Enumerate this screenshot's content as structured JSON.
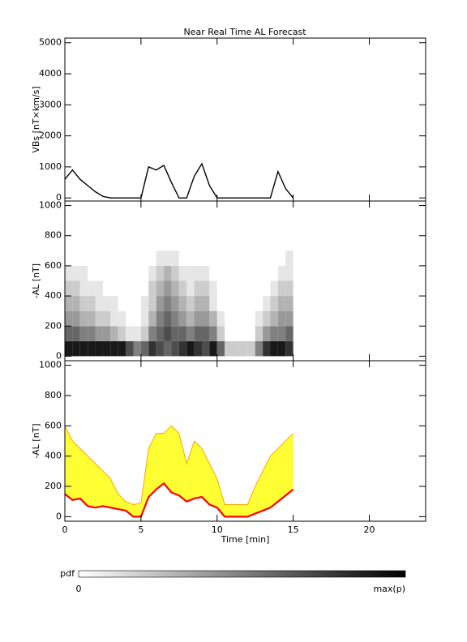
{
  "chart_data": [
    {
      "type": "line",
      "title": "Near Real Time AL Forecast",
      "ylabel": "VBs [nT×km/s]",
      "color": "#000000",
      "x": [
        0,
        0.5,
        1,
        1.5,
        2,
        2.5,
        3,
        3.5,
        4,
        4.5,
        5,
        5.5,
        6,
        6.5,
        7,
        7.5,
        8,
        8.5,
        9,
        9.5,
        10,
        10.5,
        11,
        11.5,
        12,
        12.5,
        13,
        13.5,
        14,
        14.5,
        15
      ],
      "values": [
        600,
        900,
        600,
        400,
        200,
        50,
        0,
        0,
        0,
        0,
        0,
        1000,
        900,
        1050,
        500,
        0,
        0,
        700,
        1100,
        400,
        0,
        0,
        0,
        0,
        0,
        0,
        0,
        0,
        850,
        300,
        0
      ],
      "xlim": [
        0,
        23.7
      ],
      "xticks": [
        0,
        5,
        10,
        15,
        20
      ],
      "ylim": [
        -100,
        5150
      ],
      "yticks": [
        0,
        1000,
        2000,
        3000,
        4000,
        5000
      ]
    },
    {
      "type": "heatmap",
      "ylabel": "-AL [nT]",
      "xbins": [
        0,
        0.5,
        1,
        1.5,
        2,
        2.5,
        3,
        3.5,
        4,
        4.5,
        5,
        5.5,
        6,
        6.5,
        7,
        7.5,
        8,
        8.5,
        9,
        9.5,
        10,
        10.5,
        11,
        11.5,
        12,
        12.5,
        13,
        13.5,
        14,
        14.5,
        15
      ],
      "ybins": [
        0,
        100,
        200,
        300,
        400,
        500,
        600,
        700
      ],
      "z": [
        [
          0.9,
          0.6,
          0.4,
          0.3,
          0.2,
          0.1,
          0
        ],
        [
          0.9,
          0.6,
          0.4,
          0.3,
          0.2,
          0.1,
          0
        ],
        [
          0.9,
          0.5,
          0.3,
          0.2,
          0.1,
          0.1,
          0
        ],
        [
          0.9,
          0.5,
          0.3,
          0.2,
          0.1,
          0,
          0
        ],
        [
          0.9,
          0.4,
          0.2,
          0.1,
          0.1,
          0,
          0
        ],
        [
          0.9,
          0.4,
          0.2,
          0.1,
          0,
          0,
          0
        ],
        [
          0.9,
          0.3,
          0.1,
          0.1,
          0,
          0,
          0
        ],
        [
          0.9,
          0.2,
          0.1,
          0,
          0,
          0,
          0
        ],
        [
          0.7,
          0.1,
          0,
          0,
          0,
          0,
          0
        ],
        [
          0.5,
          0.1,
          0,
          0,
          0,
          0,
          0
        ],
        [
          0.6,
          0.2,
          0.1,
          0.1,
          0,
          0,
          0
        ],
        [
          0.8,
          0.5,
          0.3,
          0.2,
          0.2,
          0.1,
          0
        ],
        [
          0.7,
          0.6,
          0.5,
          0.4,
          0.3,
          0.2,
          0.1
        ],
        [
          0.6,
          0.7,
          0.6,
          0.5,
          0.4,
          0.3,
          0.1
        ],
        [
          0.7,
          0.6,
          0.5,
          0.4,
          0.3,
          0.2,
          0.1
        ],
        [
          0.8,
          0.6,
          0.4,
          0.3,
          0.2,
          0.1,
          0
        ],
        [
          0.9,
          0.5,
          0.3,
          0.2,
          0.1,
          0.1,
          0
        ],
        [
          0.8,
          0.6,
          0.4,
          0.3,
          0.2,
          0.1,
          0
        ],
        [
          0.7,
          0.6,
          0.4,
          0.3,
          0.2,
          0.1,
          0
        ],
        [
          0.9,
          0.5,
          0.3,
          0.1,
          0.1,
          0,
          0
        ],
        [
          0.6,
          0.2,
          0.1,
          0,
          0,
          0,
          0
        ],
        [
          0.2,
          0,
          0,
          0,
          0,
          0,
          0
        ],
        [
          0.2,
          0,
          0,
          0,
          0,
          0,
          0
        ],
        [
          0.2,
          0,
          0,
          0,
          0,
          0,
          0
        ],
        [
          0.2,
          0,
          0,
          0,
          0,
          0,
          0
        ],
        [
          0.5,
          0.2,
          0.1,
          0,
          0,
          0,
          0
        ],
        [
          0.8,
          0.4,
          0.2,
          0.1,
          0,
          0,
          0
        ],
        [
          0.9,
          0.5,
          0.3,
          0.2,
          0.1,
          0,
          0
        ],
        [
          0.9,
          0.5,
          0.4,
          0.3,
          0.2,
          0.1,
          0
        ],
        [
          0.8,
          0.6,
          0.4,
          0.3,
          0.2,
          0.1,
          0.1
        ]
      ],
      "xlim": [
        0,
        23.7
      ],
      "xticks": [
        0,
        5,
        10,
        15,
        20
      ],
      "ylim": [
        -30,
        1030
      ],
      "yticks": [
        0,
        200,
        400,
        600,
        800,
        1000
      ]
    },
    {
      "type": "band",
      "ylabel": "-AL [nT]",
      "xlabel": "Time [min]",
      "color": "#ff0000",
      "band_color": "#ffff33",
      "band_edge_color": "#ffa500",
      "x": [
        0,
        0.5,
        1,
        1.5,
        2,
        2.5,
        3,
        3.5,
        4,
        4.5,
        5,
        5.5,
        6,
        6.5,
        7,
        7.5,
        8,
        8.5,
        9,
        9.5,
        10,
        10.5,
        11,
        11.5,
        12,
        12.5,
        13,
        13.5,
        14,
        14.5,
        15
      ],
      "values": [
        150,
        110,
        120,
        70,
        60,
        70,
        60,
        50,
        40,
        0,
        0,
        130,
        180,
        220,
        160,
        140,
        100,
        120,
        130,
        80,
        60,
        0,
        0,
        0,
        0,
        20,
        40,
        60,
        100,
        140,
        180
      ],
      "upper": [
        600,
        500,
        450,
        400,
        350,
        300,
        250,
        150,
        100,
        80,
        90,
        450,
        550,
        550,
        600,
        550,
        350,
        500,
        450,
        350,
        250,
        80,
        80,
        80,
        80,
        200,
        300,
        400,
        450,
        500,
        550
      ],
      "xlim": [
        0,
        23.7
      ],
      "xticks": [
        0,
        5,
        10,
        15,
        20
      ],
      "ylim": [
        -30,
        1030
      ],
      "yticks": [
        0,
        200,
        400,
        600,
        800,
        1000
      ]
    }
  ],
  "colorbar": {
    "label": "pdf",
    "min_label": "0",
    "max_label": "max(p)"
  }
}
